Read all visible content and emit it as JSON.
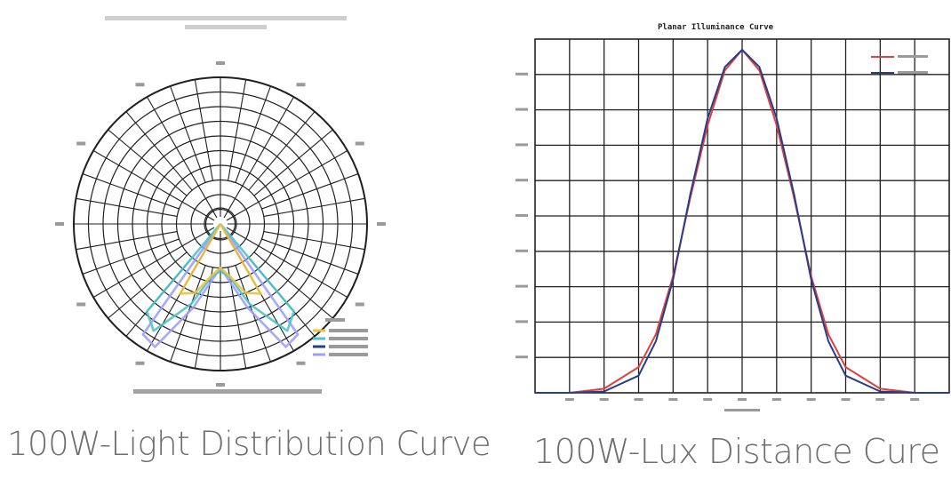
{
  "left_panel": {
    "caption": "100W-Light Distribution Curve"
  },
  "right_panel": {
    "caption": "100W-Lux Distance Cure"
  },
  "chart_data": [
    {
      "type": "polar",
      "title": "",
      "legend_placement": "bottom-right",
      "radial_rings": 10,
      "angle_step_deg": 10,
      "series": [
        {
          "color": "#9aa0ff",
          "angles": [
            -35,
            -28,
            -18,
            -8,
            0,
            8,
            18,
            28,
            35
          ],
          "values": [
            0.92,
            0.95,
            0.6,
            0.38,
            0.3,
            0.38,
            0.6,
            0.95,
            0.92
          ]
        },
        {
          "color": "#4fc3c9",
          "angles": [
            -40,
            -32,
            -20,
            -10,
            0,
            10,
            20,
            32,
            40
          ],
          "values": [
            0.78,
            0.86,
            0.58,
            0.37,
            0.32,
            0.37,
            0.58,
            0.86,
            0.78
          ]
        },
        {
          "color": "#f0c040",
          "angles": [
            -30,
            -20,
            -10,
            0,
            10,
            20,
            30
          ],
          "values": [
            0.55,
            0.5,
            0.36,
            0.3,
            0.36,
            0.5,
            0.55
          ]
        }
      ]
    },
    {
      "type": "line",
      "title": "Planar Illuminance Curve",
      "xlim": [
        -6,
        6
      ],
      "ylim": [
        0,
        1
      ],
      "grid": true,
      "legend_placement": "top-right",
      "series": [
        {
          "color": "#e04040",
          "x": [
            -6,
            -5,
            -4,
            -3,
            -2.5,
            -2,
            -1.5,
            -1,
            -0.5,
            0,
            0.5,
            1,
            1.5,
            2,
            2.5,
            3,
            4,
            5,
            6
          ],
          "y": [
            0,
            0,
            0.012,
            0.075,
            0.17,
            0.34,
            0.57,
            0.78,
            0.94,
            1.0,
            0.94,
            0.78,
            0.57,
            0.34,
            0.17,
            0.075,
            0.012,
            0,
            0
          ]
        },
        {
          "color": "#283c8c",
          "x": [
            -6,
            -5,
            -4,
            -3,
            -2.5,
            -2,
            -1.5,
            -1,
            -0.5,
            0,
            0.5,
            1,
            1.5,
            2,
            2.5,
            3,
            4,
            5,
            6
          ],
          "y": [
            0,
            0,
            0.004,
            0.05,
            0.15,
            0.33,
            0.58,
            0.8,
            0.95,
            1.0,
            0.95,
            0.8,
            0.58,
            0.33,
            0.15,
            0.05,
            0.004,
            0,
            0
          ]
        }
      ]
    }
  ]
}
